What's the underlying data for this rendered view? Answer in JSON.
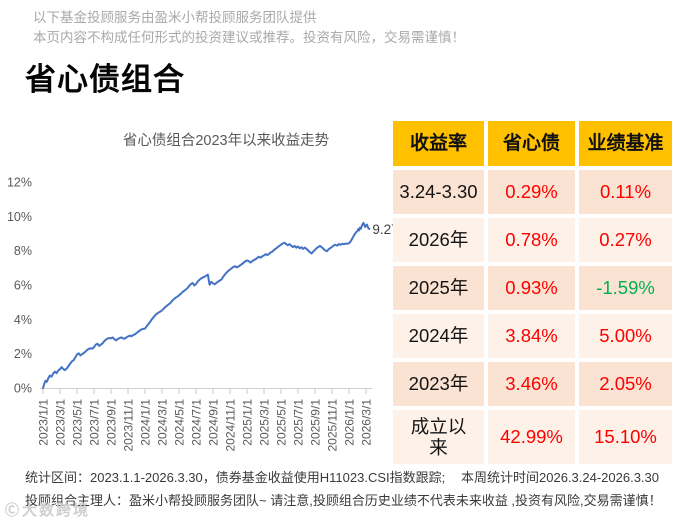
{
  "header": {
    "disclaimer_line1": "以下基金投顾服务由盈米小帮投顾服务团队提供",
    "disclaimer_line2": "本页内容不构成任何形式的投资建议或推荐。投资有风险，交易需谨慎！",
    "title": "省心债组合"
  },
  "chart_data": {
    "type": "line",
    "title": "省心债组合2023年以来收益走势",
    "xlabel": "",
    "ylabel": "",
    "ylim": [
      0,
      12
    ],
    "y_tick_labels": [
      "0%",
      "2%",
      "4%",
      "6%",
      "8%",
      "10%",
      "12%"
    ],
    "y_tick_values": [
      0,
      2,
      4,
      6,
      8,
      10,
      12
    ],
    "x_tick_labels": [
      "2023/1/1",
      "2023/3/1",
      "2023/5/1",
      "2023/7/1",
      "2023/9/1",
      "2023/11/1",
      "2024/1/1",
      "2024/3/1",
      "2024/5/1",
      "2024/7/1",
      "2024/9/1",
      "2024/11/1",
      "2025/1/1",
      "2025/3/1",
      "2025/5/1",
      "2025/7/1",
      "2025/9/1",
      "2025/11/1",
      "2026/1/1",
      "2026/3/1"
    ],
    "x_tick_months": [
      0,
      2,
      4,
      6,
      8,
      10,
      12,
      14,
      16,
      18,
      20,
      22,
      24,
      26,
      28,
      30,
      32,
      34,
      36,
      38
    ],
    "grid": false,
    "legend": false,
    "line_color": "#4472C4",
    "end_label": "9.27%",
    "series": [
      {
        "name": "省心债",
        "points_month_pct": [
          [
            0,
            0
          ],
          [
            0.15,
            0.25
          ],
          [
            0.3,
            0.42
          ],
          [
            0.45,
            0.36
          ],
          [
            0.6,
            0.55
          ],
          [
            0.8,
            0.72
          ],
          [
            1,
            0.66
          ],
          [
            1.2,
            0.84
          ],
          [
            1.4,
            0.95
          ],
          [
            1.6,
            0.87
          ],
          [
            1.8,
            1.02
          ],
          [
            2,
            1.1
          ],
          [
            2.2,
            1.22
          ],
          [
            2.4,
            1.1
          ],
          [
            2.6,
            1.04
          ],
          [
            2.8,
            1.14
          ],
          [
            3,
            1.28
          ],
          [
            3.2,
            1.42
          ],
          [
            3.4,
            1.55
          ],
          [
            3.6,
            1.62
          ],
          [
            3.8,
            1.78
          ],
          [
            4,
            1.95
          ],
          [
            4.2,
            2.02
          ],
          [
            4.4,
            1.9
          ],
          [
            4.6,
            1.97
          ],
          [
            4.8,
            2.04
          ],
          [
            5,
            2.12
          ],
          [
            5.2,
            2.22
          ],
          [
            5.4,
            2.28
          ],
          [
            5.6,
            2.32
          ],
          [
            5.8,
            2.29
          ],
          [
            6,
            2.38
          ],
          [
            6.2,
            2.52
          ],
          [
            6.4,
            2.58
          ],
          [
            6.6,
            2.45
          ],
          [
            6.8,
            2.52
          ],
          [
            7,
            2.6
          ],
          [
            7.2,
            2.72
          ],
          [
            7.4,
            2.82
          ],
          [
            7.6,
            2.88
          ],
          [
            7.8,
            2.92
          ],
          [
            8,
            2.89
          ],
          [
            8.2,
            2.95
          ],
          [
            8.4,
            2.84
          ],
          [
            8.6,
            2.77
          ],
          [
            8.8,
            2.86
          ],
          [
            9,
            2.9
          ],
          [
            9.2,
            2.95
          ],
          [
            9.4,
            2.89
          ],
          [
            9.6,
            2.87
          ],
          [
            9.8,
            2.94
          ],
          [
            10,
            3
          ],
          [
            10.2,
            3.05
          ],
          [
            10.4,
            3.01
          ],
          [
            10.6,
            3.08
          ],
          [
            10.8,
            3.12
          ],
          [
            11,
            3.2
          ],
          [
            11.2,
            3.28
          ],
          [
            11.4,
            3.35
          ],
          [
            11.6,
            3.42
          ],
          [
            11.8,
            3.44
          ],
          [
            12,
            3.46
          ],
          [
            12.2,
            3.6
          ],
          [
            12.4,
            3.72
          ],
          [
            12.6,
            3.85
          ],
          [
            12.8,
            4
          ],
          [
            13,
            4.12
          ],
          [
            13.2,
            4.24
          ],
          [
            13.4,
            4.32
          ],
          [
            13.6,
            4.4
          ],
          [
            13.8,
            4.45
          ],
          [
            14,
            4.52
          ],
          [
            14.2,
            4.62
          ],
          [
            14.4,
            4.72
          ],
          [
            14.6,
            4.8
          ],
          [
            14.8,
            4.88
          ],
          [
            15,
            4.96
          ],
          [
            15.2,
            5.08
          ],
          [
            15.4,
            5.18
          ],
          [
            15.6,
            5.26
          ],
          [
            15.8,
            5.32
          ],
          [
            16,
            5.4
          ],
          [
            16.2,
            5.48
          ],
          [
            16.4,
            5.58
          ],
          [
            16.6,
            5.66
          ],
          [
            16.8,
            5.74
          ],
          [
            17,
            5.82
          ],
          [
            17.2,
            5.95
          ],
          [
            17.4,
            6.05
          ],
          [
            17.6,
            6.12
          ],
          [
            17.8,
            5.97
          ],
          [
            18,
            6.06
          ],
          [
            18.2,
            6.2
          ],
          [
            18.4,
            6.3
          ],
          [
            18.6,
            6.38
          ],
          [
            18.8,
            6.44
          ],
          [
            19,
            6.48
          ],
          [
            19.2,
            6.55
          ],
          [
            19.4,
            6.6
          ],
          [
            19.5,
            6.28
          ],
          [
            19.6,
            6.02
          ],
          [
            19.8,
            6.18
          ],
          [
            20,
            6.1
          ],
          [
            20.2,
            6.04
          ],
          [
            20.4,
            6.12
          ],
          [
            20.6,
            6.2
          ],
          [
            20.8,
            6.26
          ],
          [
            21,
            6.32
          ],
          [
            21.2,
            6.48
          ],
          [
            21.4,
            6.62
          ],
          [
            21.6,
            6.72
          ],
          [
            21.8,
            6.82
          ],
          [
            22,
            6.9
          ],
          [
            22.2,
            6.98
          ],
          [
            22.4,
            7.05
          ],
          [
            22.6,
            7.1
          ],
          [
            22.8,
            7.02
          ],
          [
            23,
            7.08
          ],
          [
            23.2,
            7.15
          ],
          [
            23.4,
            7.22
          ],
          [
            23.6,
            7.3
          ],
          [
            23.8,
            7.38
          ],
          [
            24,
            7.43
          ],
          [
            24.2,
            7.39
          ],
          [
            24.4,
            7.31
          ],
          [
            24.6,
            7.38
          ],
          [
            24.8,
            7.45
          ],
          [
            25,
            7.5
          ],
          [
            25.2,
            7.58
          ],
          [
            25.4,
            7.65
          ],
          [
            25.6,
            7.59
          ],
          [
            25.8,
            7.68
          ],
          [
            26,
            7.72
          ],
          [
            26.2,
            7.8
          ],
          [
            26.4,
            7.74
          ],
          [
            26.6,
            7.82
          ],
          [
            26.8,
            7.9
          ],
          [
            27,
            7.95
          ],
          [
            27.2,
            8.05
          ],
          [
            27.4,
            8.12
          ],
          [
            27.6,
            8.2
          ],
          [
            27.8,
            8.28
          ],
          [
            28,
            8.35
          ],
          [
            28.2,
            8.42
          ],
          [
            28.4,
            8.46
          ],
          [
            28.6,
            8.39
          ],
          [
            28.8,
            8.31
          ],
          [
            29,
            8.38
          ],
          [
            29.2,
            8.29
          ],
          [
            29.4,
            8.21
          ],
          [
            29.6,
            8.28
          ],
          [
            29.8,
            8.17
          ],
          [
            30,
            8.24
          ],
          [
            30.2,
            8.14
          ],
          [
            30.4,
            8.2
          ],
          [
            30.6,
            8.1
          ],
          [
            30.8,
            8.18
          ],
          [
            31,
            8.11
          ],
          [
            31.2,
            8.01
          ],
          [
            31.4,
            7.91
          ],
          [
            31.6,
            7.84
          ],
          [
            31.8,
            7.95
          ],
          [
            32,
            8.05
          ],
          [
            32.2,
            8.15
          ],
          [
            32.4,
            8.22
          ],
          [
            32.6,
            8.28
          ],
          [
            32.8,
            8.19
          ],
          [
            33,
            8.11
          ],
          [
            33.2,
            8.01
          ],
          [
            33.4,
            7.97
          ],
          [
            33.6,
            8.08
          ],
          [
            33.8,
            8.15
          ],
          [
            34,
            8.22
          ],
          [
            34.2,
            8.3
          ],
          [
            34.4,
            8.35
          ],
          [
            34.6,
            8.29
          ],
          [
            34.8,
            8.38
          ],
          [
            35,
            8.34
          ],
          [
            35.2,
            8.4
          ],
          [
            35.4,
            8.37
          ],
          [
            35.6,
            8.42
          ],
          [
            35.8,
            8.4
          ],
          [
            36,
            8.43
          ],
          [
            36.2,
            8.55
          ],
          [
            36.4,
            8.72
          ],
          [
            36.6,
            8.9
          ],
          [
            36.8,
            9.05
          ],
          [
            37,
            9.15
          ],
          [
            37.1,
            9.27
          ],
          [
            37.2,
            9.18
          ],
          [
            37.3,
            9.34
          ],
          [
            37.4,
            9.28
          ],
          [
            37.5,
            9.44
          ],
          [
            37.6,
            9.55
          ],
          [
            37.7,
            9.62
          ],
          [
            37.8,
            9.5
          ],
          [
            37.9,
            9.38
          ],
          [
            38,
            9.46
          ],
          [
            38.1,
            9.52
          ],
          [
            38.2,
            9.4
          ],
          [
            38.3,
            9.3
          ],
          [
            38.4,
            9.27
          ]
        ]
      }
    ]
  },
  "table": {
    "headers": [
      "收益率",
      "省心债",
      "业绩基准"
    ],
    "rows": [
      {
        "period_lines": [
          "3.24-3.30"
        ],
        "portfolio": "0.29%",
        "benchmark": "0.11%",
        "portfolio_color": "red",
        "benchmark_color": "red"
      },
      {
        "period_lines": [
          "2026年"
        ],
        "portfolio": "0.78%",
        "benchmark": "0.27%",
        "portfolio_color": "red",
        "benchmark_color": "red"
      },
      {
        "period_lines": [
          "2025年"
        ],
        "portfolio": "0.93%",
        "benchmark": "-1.59%",
        "portfolio_color": "red",
        "benchmark_color": "green"
      },
      {
        "period_lines": [
          "2024年"
        ],
        "portfolio": "3.84%",
        "benchmark": "5.00%",
        "portfolio_color": "red",
        "benchmark_color": "red"
      },
      {
        "period_lines": [
          "2023年"
        ],
        "portfolio": "3.46%",
        "benchmark": "2.05%",
        "portfolio_color": "red",
        "benchmark_color": "red"
      },
      {
        "period_lines": [
          "成立以",
          "来"
        ],
        "portfolio": "42.99%",
        "benchmark": "15.10%",
        "portfolio_color": "red",
        "benchmark_color": "red"
      }
    ],
    "colors": {
      "header_bg": "#FFC000",
      "row_odd_bg": "#FBE3D3",
      "row_even_bg": "#FDF1E8",
      "value_red": "#FE0000",
      "value_green": "#00B050"
    }
  },
  "footer": {
    "stats_left": "统计区间：2023.1.1-2026.3.30，债券基金收益使用H11023.CSI指数跟踪;",
    "stats_right": "本周统计时间2026.3.24-2026.3.30",
    "manager_line": "投顾组合主理人：盈米小帮投顾服务团队~ 请注意,投顾组合历史业绩不代表未来收益 ,投资有风险,交易需谨慎！",
    "watermark_logo": "Ⓒ",
    "watermark_text": "大数跨境"
  }
}
